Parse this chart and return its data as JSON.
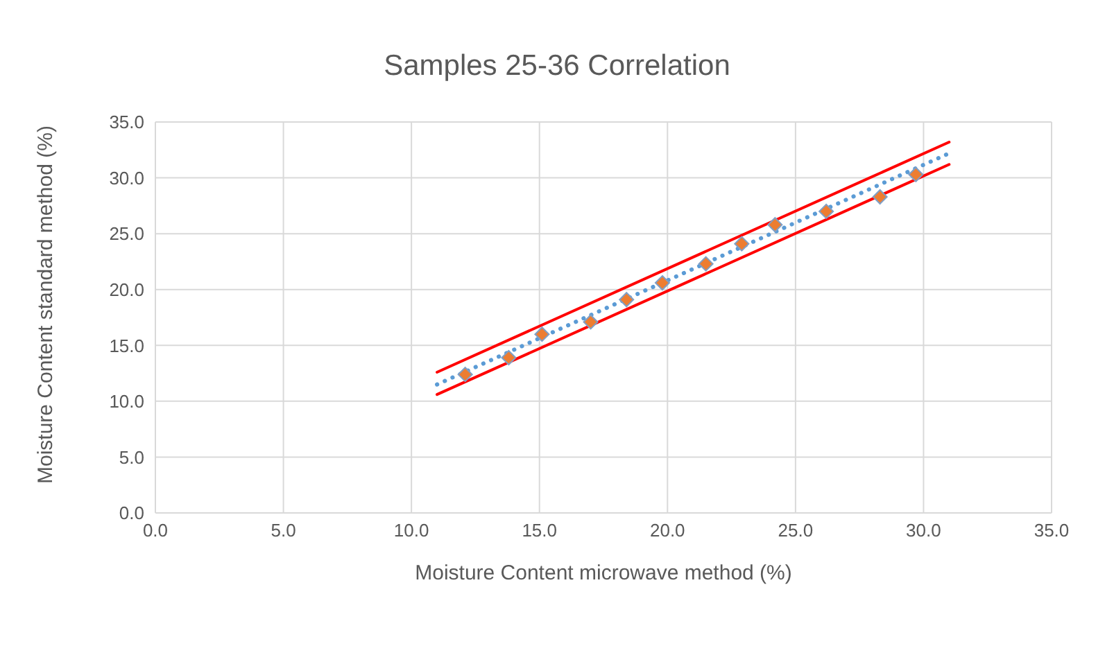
{
  "chart_data": {
    "type": "scatter",
    "title": "Samples 25-36 Correlation",
    "xlabel": "Moisture Content microwave method (%)",
    "ylabel": "Moisture Content standard method (%)",
    "xlim": [
      0,
      35
    ],
    "ylim": [
      0,
      35
    ],
    "xticks": [
      {
        "value": 0,
        "label": "0.0"
      },
      {
        "value": 5,
        "label": "5.0"
      },
      {
        "value": 10,
        "label": "10.0"
      },
      {
        "value": 15,
        "label": "15.0"
      },
      {
        "value": 20,
        "label": "20.0"
      },
      {
        "value": 25,
        "label": "25.0"
      },
      {
        "value": 30,
        "label": "30.0"
      },
      {
        "value": 35,
        "label": "35.0"
      }
    ],
    "yticks": [
      {
        "value": 0,
        "label": "0.0"
      },
      {
        "value": 5,
        "label": "5.0"
      },
      {
        "value": 10,
        "label": "10.0"
      },
      {
        "value": 15,
        "label": "15.0"
      },
      {
        "value": 20,
        "label": "20.0"
      },
      {
        "value": 25,
        "label": "25.0"
      },
      {
        "value": 30,
        "label": "30.0"
      },
      {
        "value": 35,
        "label": "35.0"
      }
    ],
    "grid": true,
    "series": [
      {
        "type": "line",
        "color": "#ff0000",
        "x": [
          11,
          31
        ],
        "values": [
          12.6,
          33.2
        ],
        "marker": "none",
        "line_style": "solid"
      },
      {
        "type": "line",
        "color": "#ff0000",
        "x": [
          11,
          31
        ],
        "values": [
          10.6,
          31.2
        ],
        "marker": "none",
        "line_style": "solid"
      },
      {
        "type": "line",
        "color": "#5b9bd5",
        "x": [
          11,
          31
        ],
        "values": [
          11.5,
          32.2
        ],
        "marker": "none",
        "line_style": "dotted"
      },
      {
        "color": "#ed7d31",
        "x": [
          12.1,
          13.8,
          15.1,
          17.0,
          18.4,
          19.8,
          21.5,
          22.9,
          24.2,
          26.2,
          28.3,
          29.7
        ],
        "values": [
          12.4,
          13.9,
          16.0,
          17.1,
          19.1,
          20.6,
          22.3,
          24.1,
          25.8,
          27.0,
          28.3,
          30.3
        ],
        "marker": "diamond"
      }
    ]
  }
}
